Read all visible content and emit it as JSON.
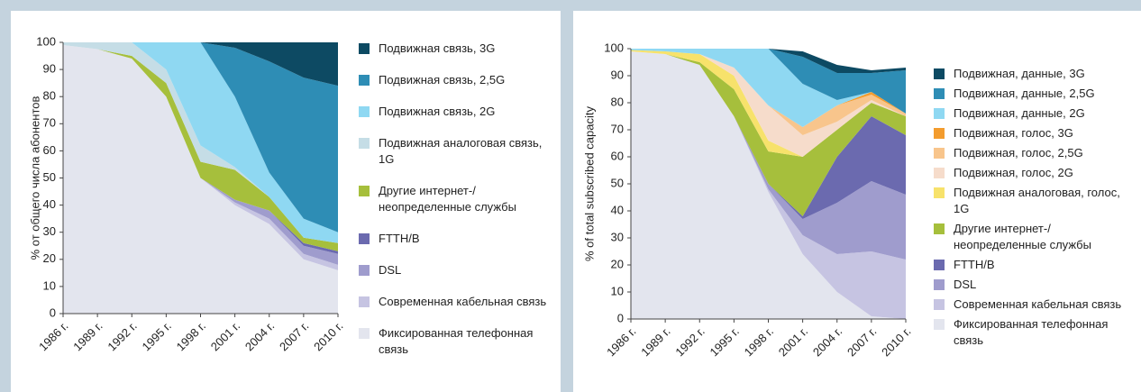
{
  "chart_data": [
    {
      "type": "stacked_area",
      "y_label": "% от общего числа абонентов",
      "categories": [
        "1986 г.",
        "1989 г.",
        "1992 г.",
        "1995 г.",
        "1998 г.",
        "2001 г.",
        "2004 г.",
        "2007 г.",
        "2010 г."
      ],
      "ylim": [
        0,
        100
      ],
      "yticks": [
        0,
        10,
        20,
        30,
        40,
        50,
        60,
        70,
        80,
        90,
        100
      ],
      "series": [
        {
          "name": "Фиксированная телефонная связь",
          "color": "#e3e5ee",
          "values": [
            99,
            97.5,
            94,
            80,
            50,
            40,
            33,
            20,
            16
          ]
        },
        {
          "name": "Современная кабельная связь",
          "color": "#c6c4e2",
          "values": [
            0,
            0,
            0,
            0,
            0,
            1,
            2,
            2,
            2
          ]
        },
        {
          "name": "DSL",
          "color": "#9f9ccd",
          "values": [
            0,
            0,
            0,
            0,
            0,
            1,
            3,
            3,
            4
          ]
        },
        {
          "name": "FTTH/B",
          "color": "#6b6aaf",
          "values": [
            0,
            0,
            0,
            0,
            0,
            0,
            0,
            1,
            1
          ]
        },
        {
          "name": "Другие интернет-/неопределенные службы",
          "color": "#a6bf3c",
          "values": [
            0,
            0,
            1,
            5,
            6,
            11,
            5,
            2,
            3
          ]
        },
        {
          "name": "Подвижная аналоговая связь, 1G",
          "color": "#c5dde6",
          "values": [
            1,
            2.5,
            5,
            5,
            6,
            1,
            0,
            0,
            0
          ]
        },
        {
          "name": "Подвижная связь, 2G",
          "color": "#8fd8f2",
          "values": [
            0,
            0,
            0,
            10,
            38,
            26,
            9,
            7,
            4
          ]
        },
        {
          "name": "Подвижная связь, 2,5G",
          "color": "#2e8db5",
          "values": [
            0,
            0,
            0,
            0,
            0,
            18,
            41,
            52,
            54
          ]
        },
        {
          "name": "Подвижная связь, 3G",
          "color": "#0d4a63",
          "values": [
            0,
            0,
            0,
            0,
            0,
            2,
            7,
            13,
            16
          ]
        }
      ]
    },
    {
      "type": "stacked_area",
      "y_label": "% of total subscribed capacity",
      "categories": [
        "1986 г.",
        "1989 г.",
        "1992 г.",
        "1995 г.",
        "1998 г.",
        "2001 г.",
        "2004 г.",
        "2007 г.",
        "2010 г."
      ],
      "ylim": [
        0,
        100
      ],
      "yticks": [
        0,
        10,
        20,
        30,
        40,
        50,
        60,
        70,
        80,
        90,
        100
      ],
      "series": [
        {
          "name": "Фиксированная телефонная связь",
          "color": "#e3e5ee",
          "values": [
            99,
            98,
            94,
            75,
            47,
            24,
            10,
            1,
            0
          ]
        },
        {
          "name": "Современная кабельная связь",
          "color": "#c6c4e2",
          "values": [
            0,
            0,
            0,
            0,
            1,
            7,
            14,
            24,
            22
          ]
        },
        {
          "name": "DSL",
          "color": "#9f9ccd",
          "values": [
            0,
            0,
            0,
            0,
            2,
            6,
            19,
            26,
            24
          ]
        },
        {
          "name": "FTTH/B",
          "color": "#6b6aaf",
          "values": [
            0,
            0,
            0,
            0,
            0,
            1,
            17,
            24,
            22
          ]
        },
        {
          "name": "Другие интернет-/неопределенные службы",
          "color": "#a6bf3c",
          "values": [
            0,
            0,
            1,
            10,
            12,
            22,
            10,
            5,
            7
          ]
        },
        {
          "name": "Подвижная аналоговая, голос, 1G",
          "color": "#f7e26b",
          "values": [
            0.5,
            1,
            3,
            5,
            4,
            0,
            0,
            0,
            0
          ]
        },
        {
          "name": "Подвижная, голос, 2G",
          "color": "#f6dccb",
          "values": [
            0,
            0,
            0,
            3,
            13,
            8,
            3,
            1,
            0
          ]
        },
        {
          "name": "Подвижная, голос, 2,5G",
          "color": "#f8c58c",
          "values": [
            0,
            0,
            0,
            0,
            0,
            3,
            6,
            2,
            1
          ]
        },
        {
          "name": "Подвижная, голос, 3G",
          "color": "#f39c2e",
          "values": [
            0,
            0,
            0,
            0,
            0,
            0,
            0,
            1,
            0
          ]
        },
        {
          "name": "Подвижная, данные, 2G",
          "color": "#8fd8f2",
          "values": [
            0.5,
            1,
            2,
            7,
            21,
            16,
            2,
            0,
            0
          ]
        },
        {
          "name": "Подвижная, данные, 2,5G",
          "color": "#2e8db5",
          "values": [
            0,
            0,
            0,
            0,
            0,
            10,
            10,
            7,
            16
          ]
        },
        {
          "name": "Подвижная, данные, 3G",
          "color": "#0d4a63",
          "values": [
            0,
            0,
            0,
            0,
            0,
            2,
            3,
            1,
            1
          ]
        }
      ]
    }
  ]
}
